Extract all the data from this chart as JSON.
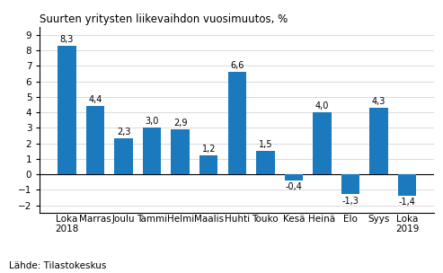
{
  "categories": [
    "Loka\n2018",
    "Marras",
    "Joulu",
    "Tammi",
    "Helmi",
    "Maalis",
    "Huhti",
    "Touko",
    "Kesä",
    "Heinä",
    "Elo",
    "Syys",
    "Loka\n2019"
  ],
  "values": [
    8.3,
    4.4,
    2.3,
    3.0,
    2.9,
    1.2,
    6.6,
    1.5,
    -0.4,
    4.0,
    -1.3,
    4.3,
    -1.4
  ],
  "title": "Suurten yritysten liikevaihdon vuosimuutos, %",
  "source_text": "Lähde: Tilastokeskus",
  "ylim": [
    -2.5,
    9.5
  ],
  "yticks": [
    -2,
    -1,
    0,
    1,
    2,
    3,
    4,
    5,
    6,
    7,
    8,
    9
  ],
  "bar_color": "#1a7abd",
  "label_fontsize": 7.0,
  "tick_fontsize": 7.5,
  "source_fontsize": 7.5,
  "title_fontsize": 8.5
}
